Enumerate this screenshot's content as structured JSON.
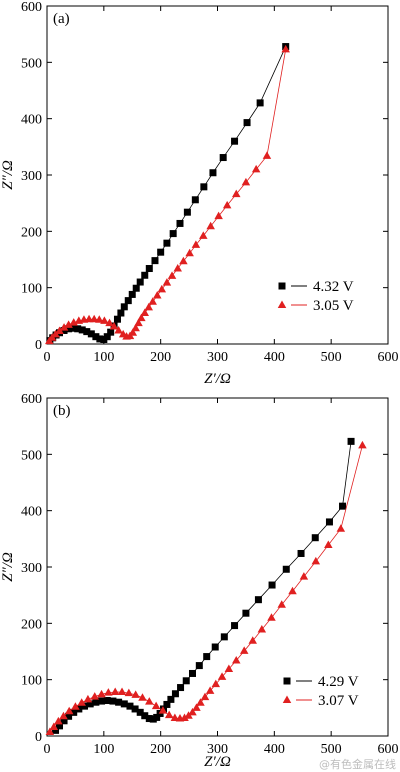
{
  "chart_data": [
    {
      "type": "scatter",
      "panel_label": "(a)",
      "xlabel": "Z′/Ω",
      "ylabel": "Z″/Ω",
      "xlim": [
        0,
        600
      ],
      "ylim": [
        0,
        600
      ],
      "xticks": [
        0,
        100,
        200,
        300,
        400,
        500,
        600
      ],
      "yticks": [
        0,
        100,
        200,
        300,
        400,
        500,
        600
      ],
      "grid": false,
      "legend_position": "bottom-right",
      "series": [
        {
          "name": "4.32 V",
          "marker": "square",
          "color": "#000000",
          "x": [
            5,
            10,
            16,
            22,
            30,
            38,
            46,
            54,
            62,
            70,
            78,
            86,
            93,
            100,
            106,
            112,
            118,
            124,
            130,
            136,
            143,
            150,
            157,
            164,
            172,
            180,
            190,
            200,
            211,
            222,
            234,
            247,
            261,
            276,
            292,
            310,
            330,
            352,
            375,
            420
          ],
          "y": [
            6,
            11,
            16,
            20,
            24,
            27,
            28,
            27,
            25,
            22,
            18,
            13,
            9,
            8,
            13,
            21,
            32,
            44,
            55,
            66,
            77,
            88,
            99,
            110,
            122,
            134,
            148,
            163,
            179,
            196,
            214,
            234,
            256,
            279,
            304,
            331,
            360,
            393,
            428,
            528
          ]
        },
        {
          "name": "3.05 V",
          "marker": "triangle",
          "color": "#e02020",
          "x": [
            4,
            9,
            15,
            22,
            30,
            38,
            47,
            56,
            65,
            74,
            83,
            92,
            101,
            110,
            118,
            126,
            134,
            140,
            146,
            151,
            156,
            161,
            166,
            172,
            179,
            186,
            194,
            202,
            211,
            220,
            230,
            240,
            251,
            262,
            275,
            288,
            302,
            317,
            333,
            350,
            368,
            387,
            420
          ],
          "y": [
            5,
            11,
            17,
            23,
            29,
            34,
            38,
            41,
            43,
            44,
            44,
            43,
            41,
            37,
            31,
            24,
            17,
            13,
            14,
            20,
            28,
            37,
            46,
            55,
            65,
            75,
            86,
            97,
            109,
            121,
            134,
            147,
            161,
            176,
            192,
            209,
            227,
            246,
            266,
            287,
            310,
            334,
            523
          ]
        }
      ]
    },
    {
      "type": "scatter",
      "panel_label": "(b)",
      "xlabel": "Z′/Ω",
      "ylabel": "Z″/Ω",
      "xlim": [
        0,
        600
      ],
      "ylim": [
        0,
        600
      ],
      "xticks": [
        0,
        100,
        200,
        300,
        400,
        500,
        600
      ],
      "yticks": [
        0,
        100,
        200,
        300,
        400,
        500,
        600
      ],
      "grid": false,
      "legend_position": "bottom-right",
      "series": [
        {
          "name": "4.29 V",
          "marker": "square",
          "color": "#000000",
          "x": [
            15,
            22,
            30,
            38,
            47,
            56,
            66,
            76,
            86,
            96,
            106,
            116,
            126,
            136,
            146,
            155,
            164,
            172,
            180,
            187,
            193,
            199,
            205,
            211,
            218,
            226,
            235,
            245,
            256,
            268,
            281,
            296,
            312,
            330,
            350,
            372,
            396,
            421,
            447,
            472,
            497,
            520,
            535
          ],
          "y": [
            10,
            18,
            27,
            35,
            42,
            48,
            53,
            57,
            60,
            62,
            63,
            62,
            60,
            57,
            53,
            48,
            42,
            36,
            31,
            30,
            33,
            40,
            48,
            56,
            65,
            75,
            86,
            98,
            111,
            125,
            141,
            158,
            176,
            196,
            218,
            242,
            268,
            296,
            324,
            352,
            380,
            408,
            523
          ]
        },
        {
          "name": "3.07 V",
          "marker": "triangle",
          "color": "#e02020",
          "x": [
            5,
            12,
            20,
            29,
            39,
            50,
            61,
            72,
            84,
            96,
            108,
            120,
            132,
            144,
            156,
            168,
            180,
            192,
            204,
            215,
            225,
            234,
            242,
            249,
            256,
            263,
            270,
            278,
            287,
            297,
            308,
            320,
            333,
            347,
            362,
            378,
            395,
            413,
            432,
            452,
            473,
            495,
            517,
            555
          ],
          "y": [
            7,
            16,
            26,
            35,
            44,
            52,
            59,
            65,
            70,
            74,
            77,
            78,
            78,
            76,
            73,
            68,
            61,
            53,
            45,
            37,
            32,
            31,
            32,
            36,
            42,
            50,
            59,
            69,
            80,
            92,
            105,
            119,
            134,
            151,
            169,
            189,
            210,
            233,
            257,
            283,
            310,
            339,
            368,
            516
          ]
        }
      ]
    }
  ],
  "watermark": "@有色金属在线"
}
